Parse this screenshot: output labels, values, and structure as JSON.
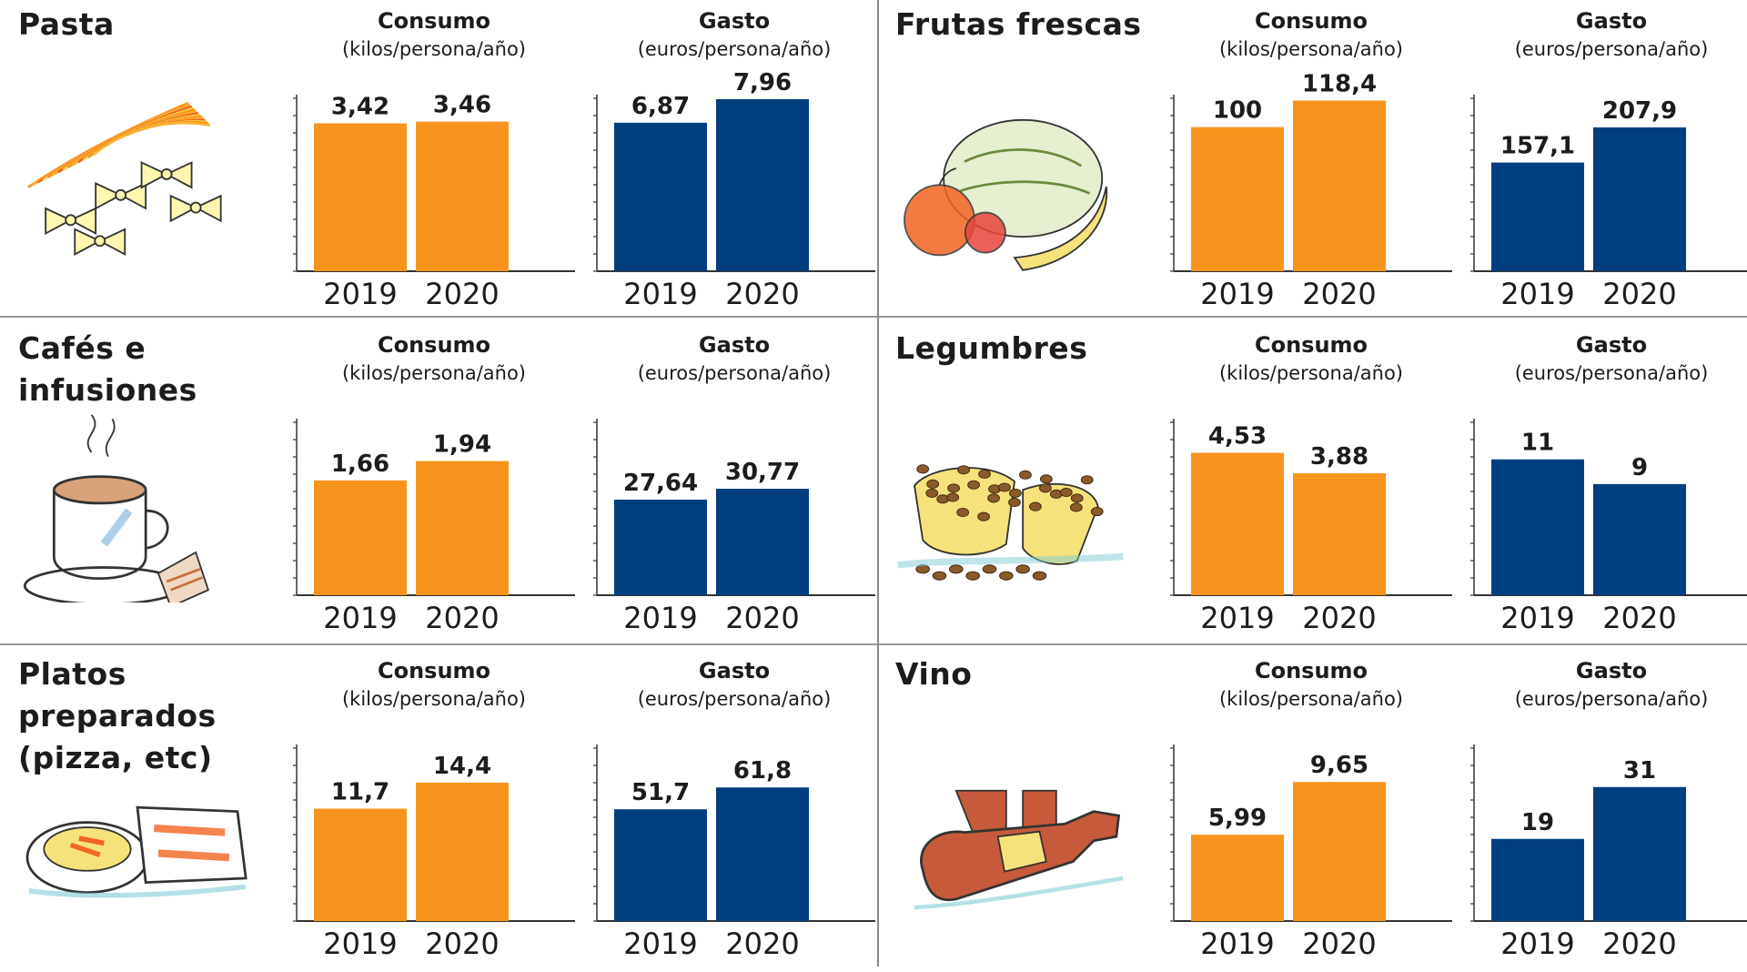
{
  "colors": {
    "consumo": "#f7941d",
    "gasto": "#003f7f",
    "axis": "#333333"
  },
  "chart_data": [
    {
      "type": "bar",
      "panel": "Pasta",
      "title": "Consumo",
      "subtitle": "(kilos/persona/año)",
      "categories": [
        "2019",
        "2020"
      ],
      "values": [
        3.42,
        3.46
      ],
      "labels": [
        "3,42",
        "3,46"
      ],
      "ylim": [
        0,
        4
      ]
    },
    {
      "type": "bar",
      "panel": "Pasta",
      "title": "Gasto",
      "subtitle": "(euros/persona/año)",
      "categories": [
        "2019",
        "2020"
      ],
      "values": [
        6.87,
        7.96
      ],
      "labels": [
        "6,87",
        "7,96"
      ],
      "ylim": [
        0,
        8
      ]
    },
    {
      "type": "bar",
      "panel": "Frutas frescas",
      "title": "Consumo",
      "subtitle": "(kilos/persona/año)",
      "categories": [
        "2019",
        "2020"
      ],
      "values": [
        100,
        118.4
      ],
      "labels": [
        "100",
        "118,4"
      ],
      "ylim": [
        0,
        120
      ]
    },
    {
      "type": "bar",
      "panel": "Frutas frescas",
      "title": "Gasto",
      "subtitle": "(euros/persona/año)",
      "categories": [
        "2019",
        "2020"
      ],
      "values": [
        157.1,
        207.9
      ],
      "labels": [
        "157,1",
        "207,9"
      ],
      "ylim": [
        0,
        250
      ]
    },
    {
      "type": "bar",
      "panel": "Cafés e infusiones",
      "title": "Consumo",
      "subtitle": "(kilos/persona/año)",
      "categories": [
        "2019",
        "2020"
      ],
      "values": [
        1.66,
        1.94
      ],
      "labels": [
        "1,66",
        "1,94"
      ],
      "ylim": [
        0,
        2.5
      ]
    },
    {
      "type": "bar",
      "panel": "Cafés e infusiones",
      "title": "Gasto",
      "subtitle": "(euros/persona/año)",
      "categories": [
        "2019",
        "2020"
      ],
      "values": [
        27.64,
        30.77
      ],
      "labels": [
        "27,64",
        "30,77"
      ],
      "ylim": [
        0,
        50
      ]
    },
    {
      "type": "bar",
      "panel": "Legumbres",
      "title": "Consumo",
      "subtitle": "(kilos/persona/año)",
      "categories": [
        "2019",
        "2020"
      ],
      "values": [
        4.53,
        3.88
      ],
      "labels": [
        "4,53",
        "3,88"
      ],
      "ylim": [
        0,
        5.5
      ]
    },
    {
      "type": "bar",
      "panel": "Legumbres",
      "title": "Gasto",
      "subtitle": "(euros/persona/año)",
      "categories": [
        "2019",
        "2020"
      ],
      "values": [
        11,
        9
      ],
      "labels": [
        "11",
        "9"
      ],
      "ylim": [
        0,
        14
      ]
    },
    {
      "type": "bar",
      "panel": "Platos preparados (pizza, etc)",
      "title": "Consumo",
      "subtitle": "(kilos/persona/año)",
      "categories": [
        "2019",
        "2020"
      ],
      "values": [
        11.7,
        14.4
      ],
      "labels": [
        "11,7",
        "14,4"
      ],
      "ylim": [
        0,
        18
      ]
    },
    {
      "type": "bar",
      "panel": "Platos preparados (pizza, etc)",
      "title": "Gasto",
      "subtitle": "(euros/persona/año)",
      "categories": [
        "2019",
        "2020"
      ],
      "values": [
        51.7,
        61.8
      ],
      "labels": [
        "51,7",
        "61,8"
      ],
      "ylim": [
        0,
        80
      ]
    },
    {
      "type": "bar",
      "panel": "Vino",
      "title": "Consumo",
      "subtitle": "(kilos/persona/año)",
      "categories": [
        "2019",
        "2020"
      ],
      "values": [
        5.99,
        9.65
      ],
      "labels": [
        "5,99",
        "9,65"
      ],
      "ylim": [
        0,
        12
      ]
    },
    {
      "type": "bar",
      "panel": "Vino",
      "title": "Gasto",
      "subtitle": "(euros/persona/año)",
      "categories": [
        "2019",
        "2020"
      ],
      "values": [
        19,
        31
      ],
      "labels": [
        "19",
        "31"
      ],
      "ylim": [
        0,
        40
      ]
    }
  ],
  "panels": [
    {
      "title": "Pasta",
      "illustration": "pasta-icon"
    },
    {
      "title": "Frutas frescas",
      "illustration": "fruit-icon"
    },
    {
      "title": "Cafés e infusiones",
      "illustration": "coffee-cup-icon"
    },
    {
      "title": "Legumbres",
      "illustration": "legumes-icon"
    },
    {
      "title": "Platos preparados (pizza, etc)",
      "title_lines": [
        "Platos preparados",
        "(pizza, etc)"
      ],
      "illustration": "prepared-dishes-icon"
    },
    {
      "title": "Vino",
      "illustration": "wine-bottle-icon"
    }
  ]
}
